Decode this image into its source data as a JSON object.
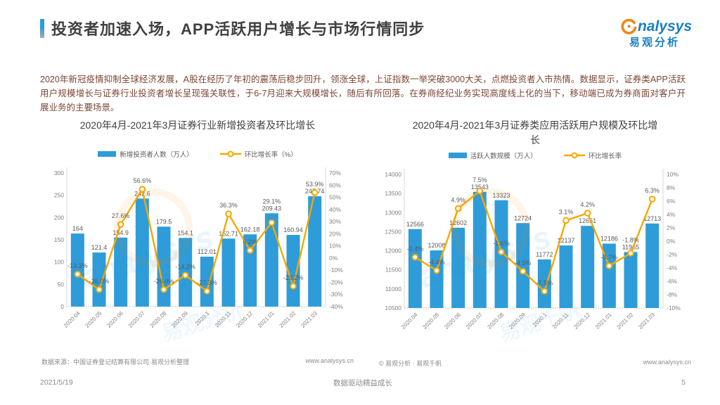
{
  "header": {
    "title": "投资者加速入场，APP活跃用户增长与市场行情同步",
    "logo": {
      "brand": "nalysys",
      "brand_cn": "易观分析"
    }
  },
  "intro": {
    "text": "2020年新冠疫情抑制全球经济发展，A股在经历了年初的震荡后稳步回升，领涨全球，上证指数一举突破3000大关，点燃投资者入市热情。数据显示，证券类APP活跃用户规模增长与证券行业投资者增长呈现强关联性，于6-7月迎来大规模增长，随后有所回落。在券商经纪业务实现高度线上化的当下，移动端已成为券商面对客户开展业务的主要场景。"
  },
  "colors": {
    "bar_blue": "#2E9CD9",
    "line_orange": "#F5A800",
    "axis_gray": "#D9D9D9",
    "tick_gray": "#7F7F7F",
    "label_gray": "#595959",
    "logo_blue": "#1B7FC3",
    "logo_orange": "#F08519"
  },
  "chart_data": [
    {
      "type": "bar+line",
      "title": "2020年4月-2021年3月证券行业新增投资者及环比增长",
      "legend": [
        "新增投资者人数（万人）",
        "环比增长率（%）"
      ],
      "categories": [
        "2020.04",
        "2020.05",
        "2020.06",
        "2020.07",
        "2020.08",
        "2020.09",
        "2020.1",
        "2020.11",
        "2020.12",
        "2021.01",
        "2021.02",
        "2021.03"
      ],
      "bars": {
        "name": "新增投资者人数（万人）",
        "values": [
          164,
          121.4,
          154.9,
          242.6,
          179.5,
          154.1,
          112.01,
          152.71,
          162.18,
          209.43,
          160.94,
          247.74
        ],
        "labels": [
          "164",
          "121.4",
          "154.9",
          "242.6",
          "179.5",
          "154.1",
          "112.01",
          "152.71",
          "162.18",
          "209.43",
          "160.94",
          "247.74"
        ]
      },
      "line": {
        "name": "环比增长率（%）",
        "values": [
          -13.3,
          -26.0,
          27.6,
          56.6,
          -26.0,
          -14.2,
          -27.3,
          36.3,
          6.2,
          29.1,
          -23.2,
          53.9
        ],
        "labels": [
          "-13.3%",
          "-26.0%",
          "27.6%",
          "56.6%",
          "-26.0%",
          "-14.2%",
          "-27.3%",
          "36.3%",
          "6.2%",
          "29.1%",
          "-23.2%",
          "53.9%"
        ]
      },
      "y1": {
        "min": 0,
        "max": 300,
        "step": 50
      },
      "y2": {
        "min": -40,
        "max": 70,
        "step": 10,
        "suffix": "%"
      },
      "grid": "off",
      "legend_position": "top",
      "source": "数据来源：中国证券登记结算有限公司·易观分析整理",
      "website": "www.analysys.cn"
    },
    {
      "type": "bar+line",
      "title": "2020年4月-2021年3月证券类应用活跃用户规模及环比增长",
      "legend": [
        "活跃人数规模（万人）",
        "环比增长率"
      ],
      "categories": [
        "2020.04",
        "2020.05",
        "2020.06",
        "2020.07",
        "2020.08",
        "2020.09",
        "2020.1",
        "2020.11",
        "2020.12",
        "2021.01",
        "2021.02",
        "2021.03"
      ],
      "bars": {
        "name": "活跃人数规模（万人）",
        "values": [
          12566,
          12008,
          12602,
          13543,
          13323,
          12724,
          11772,
          12137,
          12651,
          12186,
          11965,
          12713
        ],
        "labels": [
          "12566",
          "12008",
          "12602",
          "13543",
          "13323",
          "12724",
          "11772",
          "12137",
          "12651",
          "12186",
          "11965",
          "12713"
        ]
      },
      "line": {
        "name": "环比增长率",
        "values": [
          -2.4,
          -4.4,
          4.9,
          7.5,
          -1.6,
          -4.5,
          -7.5,
          3.1,
          4.2,
          -3.7,
          -1.8,
          6.3
        ],
        "labels": [
          "-2.4%",
          "-4.4%",
          "4.9%",
          "7.5%",
          "-1.6%",
          "-4.5%",
          "-7.5%",
          "3.1%",
          "4.2%",
          "-3.7%",
          "-1.8%",
          "6.3%"
        ]
      },
      "y1": {
        "min": 10500,
        "max": 14000,
        "step": 500
      },
      "y2": {
        "min": -10,
        "max": 10,
        "step": 2,
        "suffix": "%"
      },
      "grid": "off",
      "legend_position": "top",
      "source": "©  易观分析 · 易观千帆",
      "website": "www.analysys.cn"
    }
  ],
  "footer": {
    "date": "2021/5/19",
    "motto": "数据驱动精益成长",
    "page": "5"
  }
}
